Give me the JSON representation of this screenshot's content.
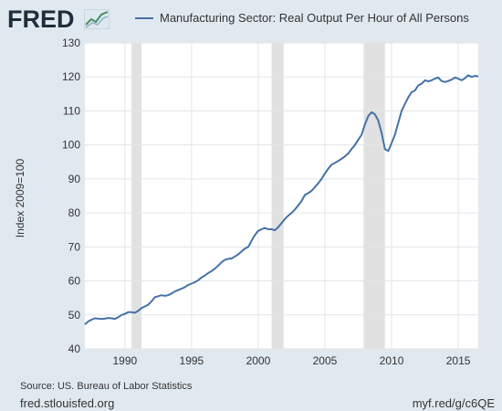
{
  "header": {
    "logo_text": "FRED",
    "logo_icon": "trend-chart-icon"
  },
  "footer": {
    "source": "Source: US. Bureau of Labor Statistics",
    "site": "fred.stlouisfed.org",
    "shortlink": "myf.red/g/c6QE"
  },
  "colors": {
    "line": "#4572a7",
    "plot_bg": "#ffffff",
    "page_bg": "#e1e9f0",
    "recession": "#e1e1e1",
    "grid": "#e1e6ea"
  },
  "chart_data": {
    "type": "line",
    "title": "",
    "xlabel": "",
    "ylabel": "Index 2009=100",
    "xlim": [
      1987.0,
      2016.5
    ],
    "ylim": [
      40,
      130
    ],
    "yticks": [
      40,
      50,
      60,
      70,
      80,
      90,
      100,
      110,
      120,
      130
    ],
    "xticks": [
      1990,
      1995,
      2000,
      2005,
      2010,
      2015
    ],
    "grid": true,
    "legend": "top",
    "recessions": [
      [
        1990.5,
        1991.25
      ],
      [
        2001.0,
        2001.9
      ],
      [
        2007.9,
        2009.5
      ]
    ],
    "series": [
      {
        "name": "Manufacturing Sector: Real Output Per Hour of All Persons",
        "points": [
          [
            1987.0,
            47.2
          ],
          [
            1987.25,
            48.1
          ],
          [
            1987.5,
            48.6
          ],
          [
            1987.75,
            49.0
          ],
          [
            1988.0,
            48.9
          ],
          [
            1988.25,
            48.8
          ],
          [
            1988.5,
            48.9
          ],
          [
            1988.75,
            49.1
          ],
          [
            1989.0,
            49.0
          ],
          [
            1989.25,
            48.8
          ],
          [
            1989.5,
            49.3
          ],
          [
            1989.75,
            50.0
          ],
          [
            1990.0,
            50.3
          ],
          [
            1990.25,
            50.8
          ],
          [
            1990.5,
            50.8
          ],
          [
            1990.75,
            50.6
          ],
          [
            1991.0,
            51.2
          ],
          [
            1991.25,
            52.0
          ],
          [
            1991.5,
            52.5
          ],
          [
            1991.75,
            53.0
          ],
          [
            1992.0,
            54.0
          ],
          [
            1992.25,
            55.2
          ],
          [
            1992.5,
            55.5
          ],
          [
            1992.75,
            55.8
          ],
          [
            1993.0,
            55.6
          ],
          [
            1993.25,
            55.8
          ],
          [
            1993.5,
            56.3
          ],
          [
            1993.75,
            56.9
          ],
          [
            1994.0,
            57.3
          ],
          [
            1994.25,
            57.7
          ],
          [
            1994.5,
            58.2
          ],
          [
            1994.75,
            58.8
          ],
          [
            1995.0,
            59.2
          ],
          [
            1995.25,
            59.6
          ],
          [
            1995.5,
            60.2
          ],
          [
            1995.75,
            61.0
          ],
          [
            1996.0,
            61.6
          ],
          [
            1996.25,
            62.3
          ],
          [
            1996.5,
            62.9
          ],
          [
            1996.75,
            63.6
          ],
          [
            1997.0,
            64.5
          ],
          [
            1997.25,
            65.5
          ],
          [
            1997.5,
            66.2
          ],
          [
            1997.75,
            66.5
          ],
          [
            1998.0,
            66.6
          ],
          [
            1998.25,
            67.2
          ],
          [
            1998.5,
            67.8
          ],
          [
            1998.75,
            68.7
          ],
          [
            1999.0,
            69.5
          ],
          [
            1999.25,
            70.0
          ],
          [
            1999.5,
            71.8
          ],
          [
            1999.75,
            73.5
          ],
          [
            2000.0,
            74.7
          ],
          [
            2000.25,
            75.2
          ],
          [
            2000.5,
            75.6
          ],
          [
            2000.75,
            75.2
          ],
          [
            2001.0,
            75.2
          ],
          [
            2001.25,
            74.9
          ],
          [
            2001.5,
            75.8
          ],
          [
            2001.75,
            77.0
          ],
          [
            2002.0,
            78.2
          ],
          [
            2002.25,
            79.2
          ],
          [
            2002.5,
            80.0
          ],
          [
            2002.75,
            81.0
          ],
          [
            2003.0,
            82.2
          ],
          [
            2003.25,
            83.5
          ],
          [
            2003.5,
            85.3
          ],
          [
            2003.75,
            85.8
          ],
          [
            2004.0,
            86.5
          ],
          [
            2004.25,
            87.6
          ],
          [
            2004.5,
            88.7
          ],
          [
            2004.75,
            90.0
          ],
          [
            2005.0,
            91.6
          ],
          [
            2005.25,
            93.0
          ],
          [
            2005.5,
            94.2
          ],
          [
            2005.75,
            94.7
          ],
          [
            2006.0,
            95.3
          ],
          [
            2006.25,
            95.9
          ],
          [
            2006.5,
            96.6
          ],
          [
            2006.75,
            97.5
          ],
          [
            2007.0,
            98.8
          ],
          [
            2007.25,
            100.0
          ],
          [
            2007.5,
            101.5
          ],
          [
            2007.75,
            103.0
          ],
          [
            2008.0,
            106.0
          ],
          [
            2008.25,
            108.5
          ],
          [
            2008.5,
            109.6
          ],
          [
            2008.75,
            109.0
          ],
          [
            2009.0,
            107.2
          ],
          [
            2009.25,
            103.5
          ],
          [
            2009.5,
            98.8
          ],
          [
            2009.75,
            98.2
          ],
          [
            2010.0,
            100.5
          ],
          [
            2010.25,
            103.0
          ],
          [
            2010.5,
            106.5
          ],
          [
            2010.75,
            110.0
          ],
          [
            2011.0,
            112.0
          ],
          [
            2011.25,
            114.0
          ],
          [
            2011.5,
            115.5
          ],
          [
            2011.75,
            116.0
          ],
          [
            2012.0,
            117.5
          ],
          [
            2012.25,
            118.0
          ],
          [
            2012.5,
            119.0
          ],
          [
            2012.75,
            118.7
          ],
          [
            2013.0,
            119.0
          ],
          [
            2013.25,
            119.5
          ],
          [
            2013.5,
            119.8
          ],
          [
            2013.75,
            118.8
          ],
          [
            2014.0,
            118.5
          ],
          [
            2014.25,
            118.8
          ],
          [
            2014.5,
            119.2
          ],
          [
            2014.75,
            119.8
          ],
          [
            2015.0,
            119.5
          ],
          [
            2015.25,
            119.0
          ],
          [
            2015.5,
            119.6
          ],
          [
            2015.75,
            120.5
          ],
          [
            2016.0,
            120.0
          ],
          [
            2016.25,
            120.3
          ],
          [
            2016.5,
            120.2
          ]
        ]
      }
    ]
  }
}
